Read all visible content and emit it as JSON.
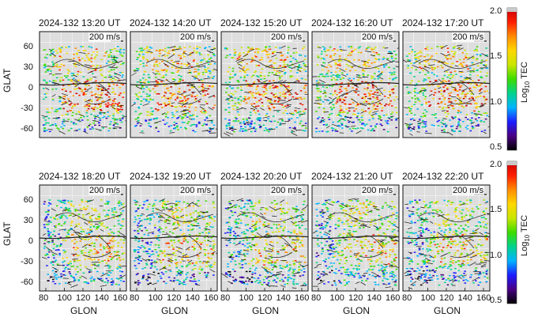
{
  "rows": [
    {
      "titles": [
        "2024-132 13:20 UT",
        "2024-132 14:20 UT",
        "2024-132 15:20 UT",
        "2024-132 16:20 UT",
        "2024-132 17:20 UT"
      ],
      "y_ticks": [
        "60",
        "30",
        "0",
        "-30",
        "-60"
      ]
    },
    {
      "titles": [
        "2024-132 18:20 UT",
        "2024-132 19:20 UT",
        "2024-132 20:20 UT",
        "2024-132 21:20 UT",
        "2024-132 22:20 UT"
      ],
      "y_ticks": [
        "60",
        "30",
        "0",
        "-30",
        "-60"
      ]
    }
  ],
  "velocity_reference": "200 m/s",
  "y_axis_label": "GLAT",
  "x_axis_label": "GLON",
  "x_ticks": [
    "80",
    "100",
    "120",
    "140",
    "160"
  ],
  "colorbar": {
    "label": "Log",
    "label_sub": "10",
    "label_suffix": " TEC",
    "ticks": [
      "2.0",
      "1.5",
      "1.0",
      "0.5"
    ],
    "colors": [
      "#000000",
      "#4b0082",
      "#1c1cff",
      "#00b4ff",
      "#00d28c",
      "#3cdc00",
      "#c8e600",
      "#ffd700",
      "#ff8c00",
      "#ff1e00",
      "#c80000",
      "#c8c8c8"
    ]
  }
}
